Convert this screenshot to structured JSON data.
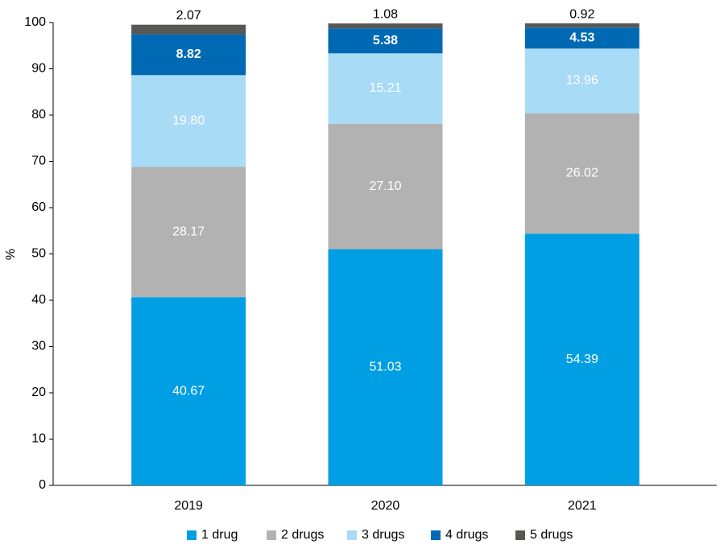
{
  "chart_data": {
    "type": "stacked_bar",
    "y_label": "%",
    "categories": [
      "2019",
      "2020",
      "2021"
    ],
    "series": [
      {
        "name": "1 drug",
        "color": "#009fe3",
        "values": [
          40.67,
          51.03,
          54.39
        ],
        "value_labels": [
          "40.67",
          "51.03",
          "54.39"
        ]
      },
      {
        "name": "2 drugs",
        "color": "#b2b2b2",
        "values": [
          28.17,
          27.1,
          26.02
        ],
        "value_labels": [
          "28.17",
          "27.10",
          "26.02"
        ]
      },
      {
        "name": "3 drugs",
        "color": "#a8dbf5",
        "values": [
          19.8,
          15.21,
          13.96
        ],
        "value_labels": [
          "19.80",
          "15.21",
          "13.96"
        ]
      },
      {
        "name": "4 drugs",
        "color": "#0069b4",
        "values": [
          8.82,
          5.38,
          4.53
        ],
        "value_labels": [
          "8.82",
          "5.38",
          "4.53"
        ]
      },
      {
        "name": "5 drugs",
        "color": "#575756",
        "values": [
          2.07,
          1.08,
          0.92
        ],
        "value_labels": [
          "2.07",
          "1.08",
          "0.92"
        ]
      }
    ],
    "ylim": [
      0,
      100
    ],
    "yticks": [
      0,
      10,
      20,
      30,
      40,
      50,
      60,
      70,
      80,
      90,
      100
    ],
    "legend": "bottom"
  }
}
